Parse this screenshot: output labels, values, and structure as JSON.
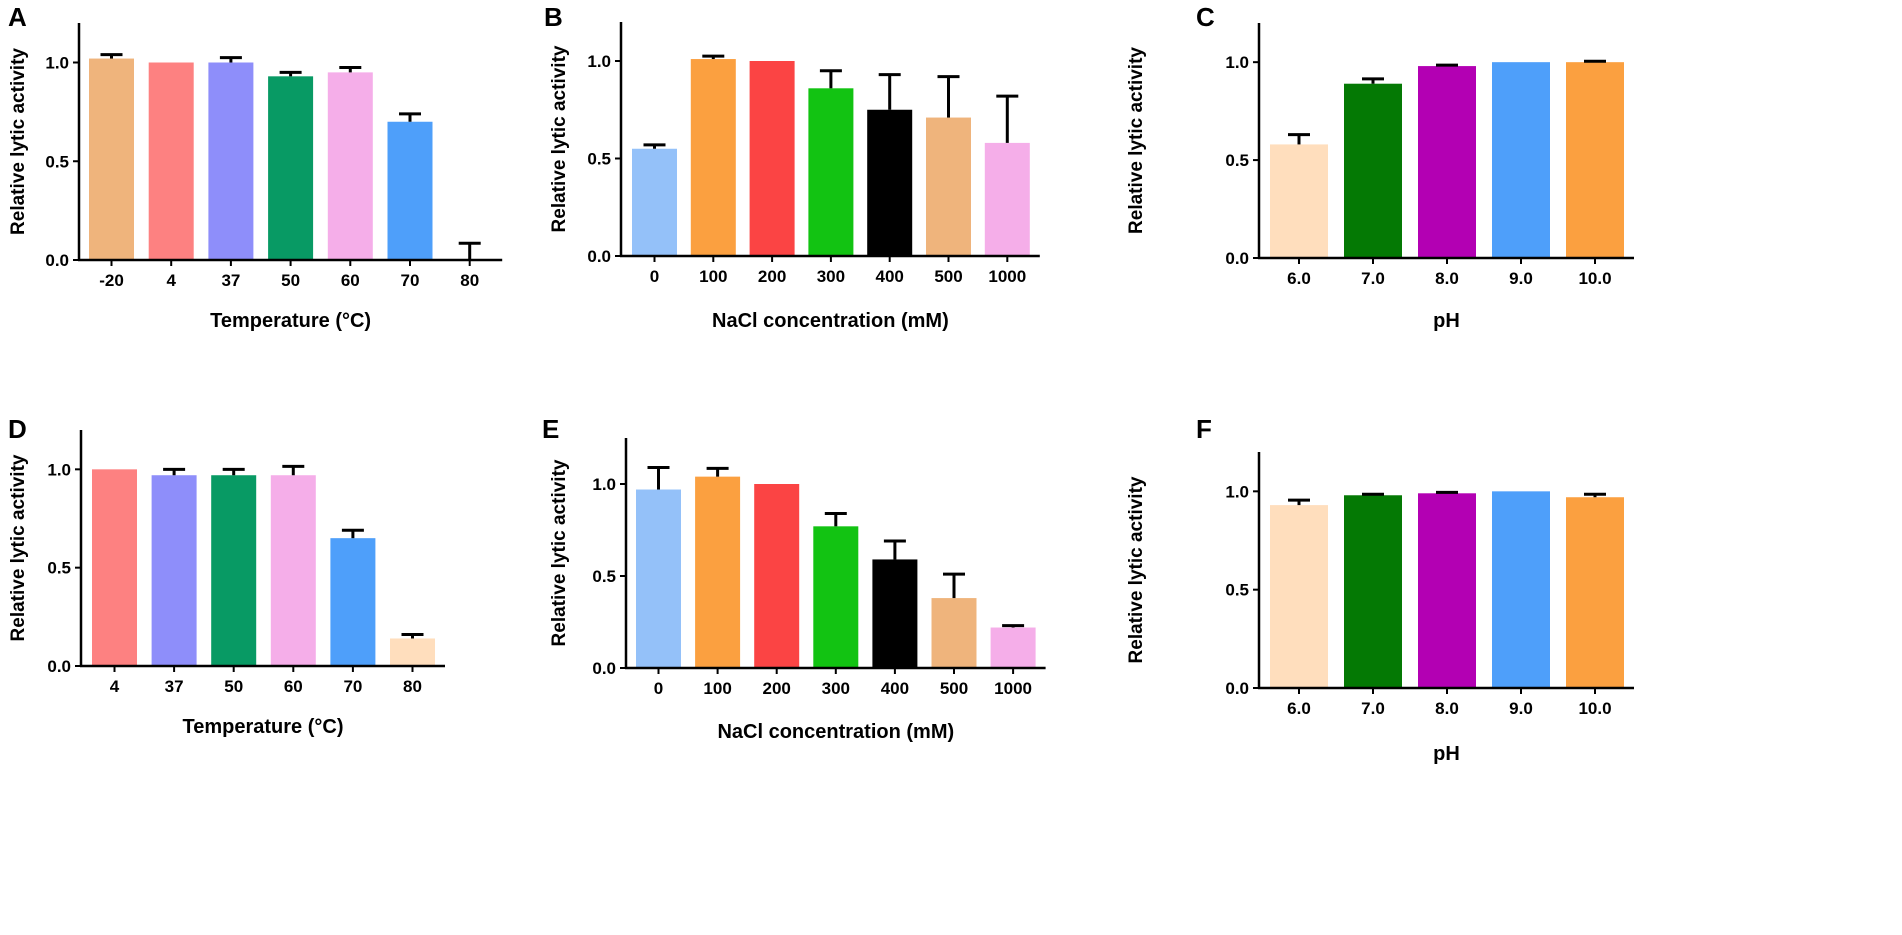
{
  "colors": {
    "lightblue": "#94C1F9",
    "orange": "#FBA040",
    "red": "#FB4444",
    "green": "#12C312",
    "black": "#000000",
    "tan": "#EFB47C",
    "pink": "#F5AEE9",
    "salmon": "#FD8181",
    "lavender": "#8E8EFA",
    "teal": "#089A64",
    "blue": "#4E9FFA",
    "peach": "#FFDEBD",
    "darkgreen": "#047904",
    "purple": "#B300B3"
  },
  "chart_data": [
    {
      "id": "A",
      "type": "bar",
      "letter": "A",
      "xlabel": "Temperature (°C)",
      "ylabel": "Relative lytic activity",
      "ylim": [
        0,
        1.2
      ],
      "yticks": [
        "0.0",
        "0.5",
        "1.0"
      ],
      "ytick_values": [
        0,
        0.5,
        1.0
      ],
      "categories": [
        "-20",
        "4",
        "37",
        "50",
        "60",
        "70",
        "80"
      ],
      "values": [
        1.02,
        1.0,
        1.0,
        0.93,
        0.95,
        0.7,
        0.005
      ],
      "errors": [
        0.02,
        0,
        0.025,
        0.02,
        0.025,
        0.04,
        0.08
      ],
      "colors": [
        "tan",
        "salmon",
        "lavender",
        "teal",
        "pink",
        "blue",
        "peach"
      ]
    },
    {
      "id": "B",
      "type": "bar",
      "letter": "B",
      "xlabel": "NaCl concentration (mM)",
      "ylabel": "Relative lytic activity",
      "ylim": [
        0,
        1.2
      ],
      "yticks": [
        "0.0",
        "0.5",
        "1.0"
      ],
      "ytick_values": [
        0,
        0.5,
        1.0
      ],
      "categories": [
        "0",
        "100",
        "200",
        "300",
        "400",
        "500",
        "1000"
      ],
      "values": [
        0.55,
        1.01,
        1.0,
        0.86,
        0.75,
        0.71,
        0.58
      ],
      "errors": [
        0.02,
        0.015,
        0,
        0.09,
        0.18,
        0.21,
        0.24
      ],
      "colors": [
        "lightblue",
        "orange",
        "red",
        "green",
        "black",
        "tan",
        "pink"
      ]
    },
    {
      "id": "C",
      "type": "bar",
      "letter": "C",
      "xlabel": "pH",
      "ylabel": "Relative lytic activity",
      "ylim": [
        0,
        1.2
      ],
      "yticks": [
        "0.0",
        "0.5",
        "1.0"
      ],
      "ytick_values": [
        0,
        0.5,
        1.0
      ],
      "categories": [
        "6.0",
        "7.0",
        "8.0",
        "9.0",
        "10.0"
      ],
      "values": [
        0.58,
        0.89,
        0.98,
        1.0,
        1.0
      ],
      "errors": [
        0.05,
        0.025,
        0.005,
        0,
        0.005
      ],
      "colors": [
        "peach",
        "darkgreen",
        "purple",
        "blue",
        "orange"
      ]
    },
    {
      "id": "D",
      "type": "bar",
      "letter": "D",
      "xlabel": "Temperature (°C)",
      "ylabel": "Relative lytic activity",
      "ylim": [
        0,
        1.2
      ],
      "yticks": [
        "0.0",
        "0.5",
        "1.0"
      ],
      "ytick_values": [
        0,
        0.5,
        1.0
      ],
      "categories": [
        "4",
        "37",
        "50",
        "60",
        "70",
        "80"
      ],
      "values": [
        1.0,
        0.97,
        0.97,
        0.97,
        0.65,
        0.14
      ],
      "errors": [
        0,
        0.03,
        0.03,
        0.045,
        0.04,
        0.02
      ],
      "colors": [
        "salmon",
        "lavender",
        "teal",
        "pink",
        "blue",
        "peach"
      ]
    },
    {
      "id": "E",
      "type": "bar",
      "letter": "E",
      "xlabel": "NaCl concentration (mM)",
      "ylabel": "Relative lytic activity",
      "ylim": [
        0,
        1.25
      ],
      "yticks": [
        "0.0",
        "0.5",
        "1.0"
      ],
      "ytick_values": [
        0,
        0.5,
        1.0
      ],
      "categories": [
        "0",
        "100",
        "200",
        "300",
        "400",
        "500",
        "1000"
      ],
      "values": [
        0.97,
        1.04,
        1.0,
        0.77,
        0.59,
        0.38,
        0.22
      ],
      "errors": [
        0.12,
        0.045,
        0,
        0.07,
        0.1,
        0.13,
        0.01
      ],
      "colors": [
        "lightblue",
        "orange",
        "red",
        "green",
        "black",
        "tan",
        "pink"
      ]
    },
    {
      "id": "F",
      "type": "bar",
      "letter": "F",
      "xlabel": "pH",
      "ylabel": "Relative lytic activity",
      "ylim": [
        0,
        1.2
      ],
      "yticks": [
        "0.0",
        "0.5",
        "1.0"
      ],
      "ytick_values": [
        0,
        0.5,
        1.0
      ],
      "categories": [
        "6.0",
        "7.0",
        "8.0",
        "9.0",
        "10.0"
      ],
      "values": [
        0.93,
        0.98,
        0.99,
        1.0,
        0.97
      ],
      "errors": [
        0.025,
        0.005,
        0.005,
        0,
        0.015
      ],
      "colors": [
        "peach",
        "darkgreen",
        "purple",
        "blue",
        "orange"
      ]
    }
  ]
}
